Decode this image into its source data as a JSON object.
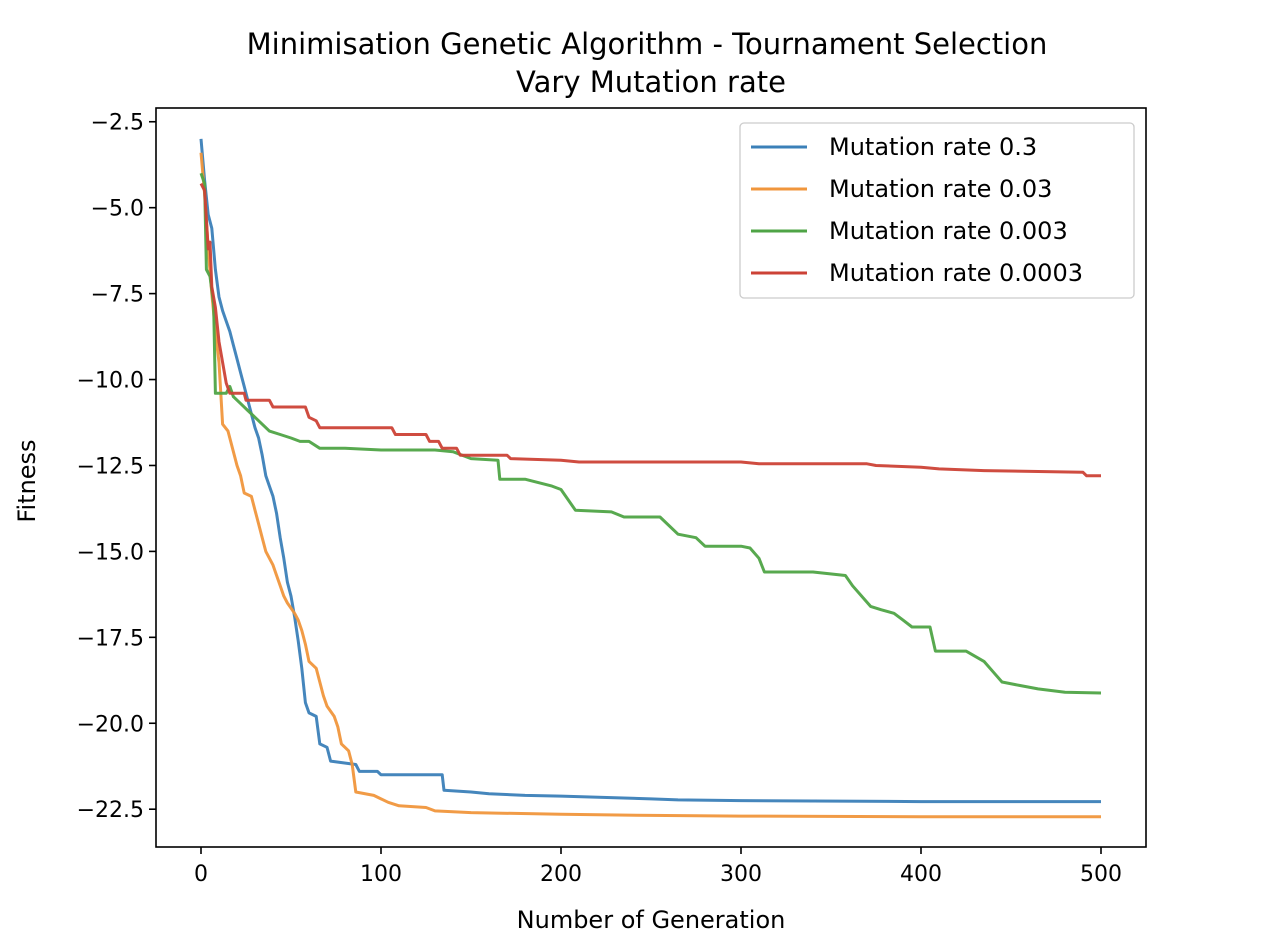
{
  "chart_data": {
    "type": "line",
    "title": "Minimisation Genetic Algorithm - Tournament Selection",
    "subtitle": "Vary Mutation rate",
    "xlabel": "Number of Generation",
    "ylabel": "Fitness",
    "xlim": [
      -25,
      525
    ],
    "ylim": [
      -23.6,
      -2.1
    ],
    "xticks": [
      0,
      100,
      200,
      300,
      400,
      500
    ],
    "xtick_labels": [
      "0",
      "100",
      "200",
      "300",
      "400",
      "500"
    ],
    "yticks": [
      -2.5,
      -5.0,
      -7.5,
      -10.0,
      -12.5,
      -15.0,
      -17.5,
      -20.0,
      -22.5
    ],
    "ytick_labels": [
      "−2.5",
      "−5.0",
      "−7.5",
      "−10.0",
      "−12.5",
      "−15.0",
      "−17.5",
      "−20.0",
      "−22.5"
    ],
    "grid": false,
    "legend_position": "top-right",
    "series": [
      {
        "name": "Mutation rate 0.3",
        "color": "#3b80b8",
        "points": [
          [
            0,
            -3.0
          ],
          [
            2,
            -4.2
          ],
          [
            4,
            -5.2
          ],
          [
            6,
            -5.6
          ],
          [
            8,
            -6.8
          ],
          [
            10,
            -7.6
          ],
          [
            12,
            -8.0
          ],
          [
            14,
            -8.3
          ],
          [
            16,
            -8.6
          ],
          [
            18,
            -9.0
          ],
          [
            20,
            -9.4
          ],
          [
            22,
            -9.8
          ],
          [
            24,
            -10.2
          ],
          [
            26,
            -10.6
          ],
          [
            28,
            -11.0
          ],
          [
            30,
            -11.4
          ],
          [
            32,
            -11.7
          ],
          [
            34,
            -12.2
          ],
          [
            36,
            -12.8
          ],
          [
            38,
            -13.1
          ],
          [
            40,
            -13.4
          ],
          [
            42,
            -13.9
          ],
          [
            44,
            -14.6
          ],
          [
            46,
            -15.2
          ],
          [
            48,
            -15.9
          ],
          [
            50,
            -16.3
          ],
          [
            52,
            -16.9
          ],
          [
            54,
            -17.6
          ],
          [
            56,
            -18.4
          ],
          [
            58,
            -19.4
          ],
          [
            60,
            -19.7
          ],
          [
            64,
            -19.8
          ],
          [
            66,
            -20.6
          ],
          [
            70,
            -20.7
          ],
          [
            72,
            -21.1
          ],
          [
            86,
            -21.2
          ],
          [
            88,
            -21.4
          ],
          [
            98,
            -21.4
          ],
          [
            100,
            -21.5
          ],
          [
            134,
            -21.5
          ],
          [
            135,
            -21.95
          ],
          [
            150,
            -22.0
          ],
          [
            160,
            -22.05
          ],
          [
            180,
            -22.1
          ],
          [
            200,
            -22.12
          ],
          [
            250,
            -22.2
          ],
          [
            265,
            -22.23
          ],
          [
            300,
            -22.25
          ],
          [
            400,
            -22.28
          ],
          [
            500,
            -22.28
          ]
        ]
      },
      {
        "name": "Mutation rate 0.03",
        "color": "#f0963c",
        "points": [
          [
            0,
            -3.4
          ],
          [
            2,
            -4.6
          ],
          [
            4,
            -6.2
          ],
          [
            6,
            -7.5
          ],
          [
            8,
            -8.6
          ],
          [
            10,
            -9.5
          ],
          [
            12,
            -11.3
          ],
          [
            15,
            -11.5
          ],
          [
            18,
            -12.1
          ],
          [
            20,
            -12.5
          ],
          [
            22,
            -12.8
          ],
          [
            24,
            -13.3
          ],
          [
            28,
            -13.4
          ],
          [
            30,
            -13.8
          ],
          [
            32,
            -14.2
          ],
          [
            34,
            -14.6
          ],
          [
            36,
            -15.0
          ],
          [
            40,
            -15.4
          ],
          [
            42,
            -15.7
          ],
          [
            44,
            -16.0
          ],
          [
            46,
            -16.3
          ],
          [
            48,
            -16.5
          ],
          [
            52,
            -16.8
          ],
          [
            54,
            -17.0
          ],
          [
            56,
            -17.3
          ],
          [
            58,
            -17.7
          ],
          [
            60,
            -18.2
          ],
          [
            64,
            -18.4
          ],
          [
            66,
            -18.8
          ],
          [
            68,
            -19.2
          ],
          [
            70,
            -19.5
          ],
          [
            74,
            -19.8
          ],
          [
            76,
            -20.1
          ],
          [
            78,
            -20.6
          ],
          [
            82,
            -20.8
          ],
          [
            84,
            -21.2
          ],
          [
            86,
            -22.0
          ],
          [
            96,
            -22.1
          ],
          [
            100,
            -22.2
          ],
          [
            104,
            -22.3
          ],
          [
            110,
            -22.4
          ],
          [
            125,
            -22.45
          ],
          [
            130,
            -22.55
          ],
          [
            150,
            -22.6
          ],
          [
            200,
            -22.65
          ],
          [
            250,
            -22.68
          ],
          [
            300,
            -22.7
          ],
          [
            400,
            -22.72
          ],
          [
            500,
            -22.72
          ]
        ]
      },
      {
        "name": "Mutation rate 0.003",
        "color": "#4fa446",
        "points": [
          [
            0,
            -4.0
          ],
          [
            2,
            -4.3
          ],
          [
            3,
            -6.8
          ],
          [
            5,
            -7.0
          ],
          [
            7,
            -7.8
          ],
          [
            8,
            -10.4
          ],
          [
            14,
            -10.4
          ],
          [
            16,
            -10.2
          ],
          [
            18,
            -10.5
          ],
          [
            22,
            -10.7
          ],
          [
            26,
            -10.9
          ],
          [
            30,
            -11.1
          ],
          [
            34,
            -11.3
          ],
          [
            38,
            -11.5
          ],
          [
            44,
            -11.6
          ],
          [
            50,
            -11.7
          ],
          [
            55,
            -11.8
          ],
          [
            60,
            -11.8
          ],
          [
            66,
            -12.0
          ],
          [
            80,
            -12.0
          ],
          [
            100,
            -12.05
          ],
          [
            130,
            -12.05
          ],
          [
            140,
            -12.1
          ],
          [
            150,
            -12.3
          ],
          [
            165,
            -12.35
          ],
          [
            166,
            -12.9
          ],
          [
            180,
            -12.9
          ],
          [
            195,
            -13.1
          ],
          [
            200,
            -13.2
          ],
          [
            208,
            -13.8
          ],
          [
            228,
            -13.85
          ],
          [
            235,
            -14.0
          ],
          [
            255,
            -14.0
          ],
          [
            265,
            -14.5
          ],
          [
            275,
            -14.6
          ],
          [
            280,
            -14.85
          ],
          [
            300,
            -14.85
          ],
          [
            305,
            -14.9
          ],
          [
            310,
            -15.2
          ],
          [
            313,
            -15.6
          ],
          [
            320,
            -15.6
          ],
          [
            340,
            -15.6
          ],
          [
            358,
            -15.7
          ],
          [
            362,
            -16.0
          ],
          [
            372,
            -16.6
          ],
          [
            378,
            -16.7
          ],
          [
            385,
            -16.8
          ],
          [
            390,
            -17.0
          ],
          [
            395,
            -17.2
          ],
          [
            405,
            -17.2
          ],
          [
            408,
            -17.9
          ],
          [
            425,
            -17.9
          ],
          [
            435,
            -18.2
          ],
          [
            440,
            -18.5
          ],
          [
            445,
            -18.8
          ],
          [
            455,
            -18.9
          ],
          [
            465,
            -19.0
          ],
          [
            480,
            -19.1
          ],
          [
            500,
            -19.12
          ]
        ]
      },
      {
        "name": "Mutation rate 0.0003",
        "color": "#cc4236",
        "points": [
          [
            0,
            -4.3
          ],
          [
            2,
            -4.5
          ],
          [
            4,
            -6.2
          ],
          [
            5,
            -6.0
          ],
          [
            6,
            -7.3
          ],
          [
            8,
            -7.9
          ],
          [
            10,
            -8.9
          ],
          [
            12,
            -9.5
          ],
          [
            14,
            -10.1
          ],
          [
            16,
            -10.4
          ],
          [
            24,
            -10.4
          ],
          [
            25,
            -10.6
          ],
          [
            38,
            -10.6
          ],
          [
            40,
            -10.8
          ],
          [
            58,
            -10.8
          ],
          [
            60,
            -11.1
          ],
          [
            64,
            -11.2
          ],
          [
            66,
            -11.4
          ],
          [
            106,
            -11.4
          ],
          [
            108,
            -11.6
          ],
          [
            125,
            -11.6
          ],
          [
            127,
            -11.8
          ],
          [
            132,
            -11.8
          ],
          [
            134,
            -12.0
          ],
          [
            142,
            -12.0
          ],
          [
            144,
            -12.2
          ],
          [
            150,
            -12.2
          ],
          [
            170,
            -12.2
          ],
          [
            172,
            -12.3
          ],
          [
            200,
            -12.35
          ],
          [
            210,
            -12.4
          ],
          [
            300,
            -12.4
          ],
          [
            310,
            -12.45
          ],
          [
            370,
            -12.45
          ],
          [
            375,
            -12.5
          ],
          [
            400,
            -12.55
          ],
          [
            410,
            -12.6
          ],
          [
            435,
            -12.65
          ],
          [
            490,
            -12.7
          ],
          [
            492,
            -12.8
          ],
          [
            500,
            -12.8
          ]
        ]
      }
    ]
  }
}
